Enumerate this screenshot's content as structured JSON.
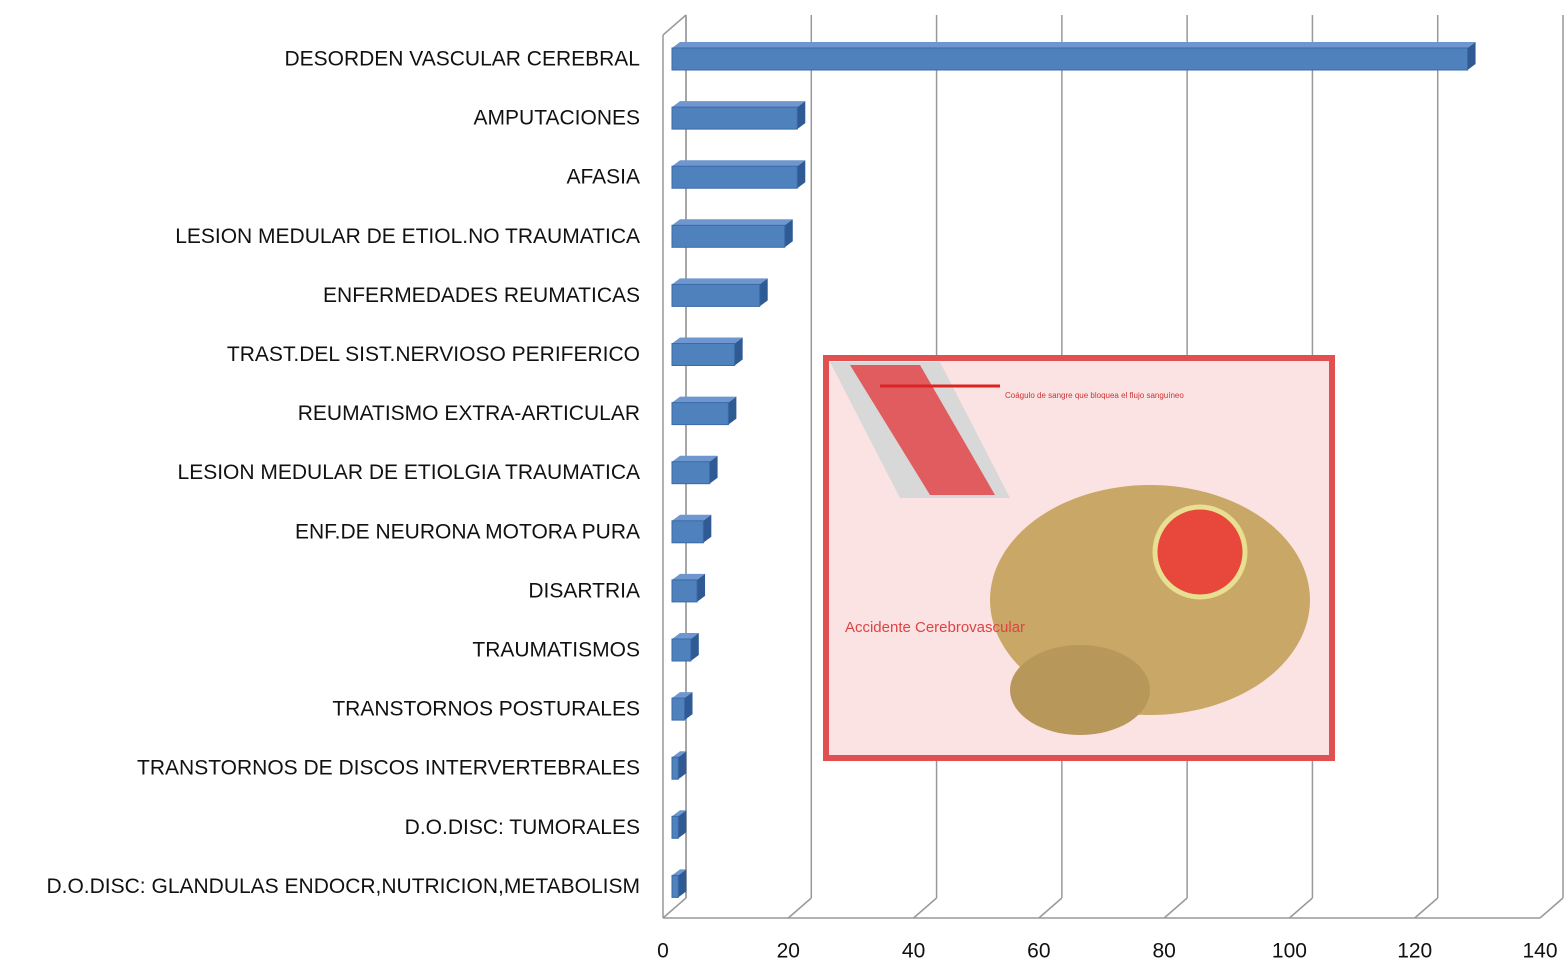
{
  "chart_data": {
    "type": "bar3d_horizontal",
    "categories": [
      "DESORDEN VASCULAR CEREBRAL",
      "AMPUTACIONES",
      "AFASIA",
      "LESION MEDULAR DE ETIOL.NO TRAUMATICA",
      "ENFERMEDADES REUMATICAS",
      "TRAST.DEL SIST.NERVIOSO PERIFERICO",
      "REUMATISMO EXTRA-ARTICULAR",
      "LESION MEDULAR DE ETIOLGIA TRAUMATICA",
      "ENF.DE NEURONA MOTORA PURA",
      "DISARTRIA",
      "TRAUMATISMOS",
      "TRANSTORNOS POSTURALES",
      "TRANSTORNOS DE DISCOS INTERVERTEBRALES",
      "D.O.DISC: TUMORALES",
      "D.O.DISC: GLANDULAS ENDOCR,NUTRICION,METABOLISM"
    ],
    "values": [
      127,
      20,
      20,
      18,
      14,
      10,
      9,
      6,
      5,
      4,
      3,
      2,
      1,
      1,
      1
    ],
    "color": "#4f81bd",
    "xlim": [
      0,
      140
    ],
    "xticks": [
      0,
      20,
      40,
      60,
      80,
      100,
      120,
      140
    ],
    "grid": true,
    "annotations": [
      "Accidente Cerebrovascular",
      "Coágulo de sangre que bloquea el flujo sanguíneo"
    ]
  }
}
